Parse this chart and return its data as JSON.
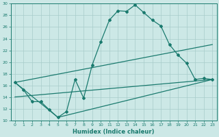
{
  "xlabel": "Humidex (Indice chaleur)",
  "xlim": [
    -0.5,
    23.5
  ],
  "ylim": [
    10,
    30
  ],
  "yticks": [
    10,
    12,
    14,
    16,
    18,
    20,
    22,
    24,
    26,
    28,
    30
  ],
  "xticks": [
    0,
    1,
    2,
    3,
    4,
    5,
    6,
    7,
    8,
    9,
    10,
    11,
    12,
    13,
    14,
    15,
    16,
    17,
    18,
    19,
    20,
    21,
    22,
    23
  ],
  "bg_color": "#cce8e6",
  "grid_color": "#a8ccca",
  "line_color": "#1a7a6e",
  "line1_x": [
    0,
    1,
    2,
    3,
    4,
    5,
    6,
    7,
    8,
    9,
    10,
    11,
    12,
    13,
    14,
    15,
    16,
    17,
    18,
    19,
    20,
    21,
    22,
    23
  ],
  "line1_y": [
    16.5,
    15.2,
    13.2,
    13.2,
    11.8,
    10.5,
    11.5,
    17.0,
    13.8,
    19.5,
    23.5,
    27.2,
    28.8,
    28.7,
    29.8,
    28.5,
    27.2,
    26.2,
    23.0,
    21.2,
    19.8,
    17.0,
    17.2,
    17.0
  ],
  "line2_x": [
    0,
    5,
    23
  ],
  "line2_y": [
    16.5,
    10.5,
    17.0
  ],
  "line3_x": [
    0,
    23
  ],
  "line3_y": [
    16.5,
    23.0
  ],
  "line4_x": [
    0,
    23
  ],
  "line4_y": [
    14.0,
    17.0
  ]
}
